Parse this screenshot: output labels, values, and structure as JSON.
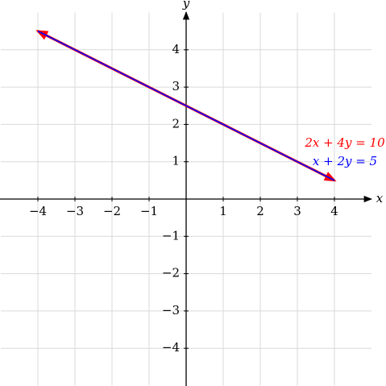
{
  "chart_data": {
    "type": "line",
    "x": [
      -4,
      4
    ],
    "series": [
      {
        "name": "2x + 4y = 10",
        "color": "#ff0000",
        "values": [
          4.5,
          0.5
        ]
      },
      {
        "name": "x + 2y = 5",
        "color": "#0000ff",
        "values": [
          4.5,
          0.5
        ]
      }
    ],
    "x_label": "x",
    "y_label": "y",
    "xlim": [
      -5,
      5
    ],
    "ylim": [
      -5,
      5
    ],
    "xticks": [
      {
        "value": -4,
        "label": "−4"
      },
      {
        "value": -3,
        "label": "−3"
      },
      {
        "value": -2,
        "label": "−2"
      },
      {
        "value": -1,
        "label": "−1"
      },
      1,
      2,
      3,
      4
    ],
    "yticks": [
      {
        "value": -4,
        "label": "−4"
      },
      {
        "value": -3,
        "label": "−3"
      },
      {
        "value": -2,
        "label": "−2"
      },
      {
        "value": -1,
        "label": "−1"
      },
      1,
      2,
      3,
      4
    ],
    "grid": true
  }
}
